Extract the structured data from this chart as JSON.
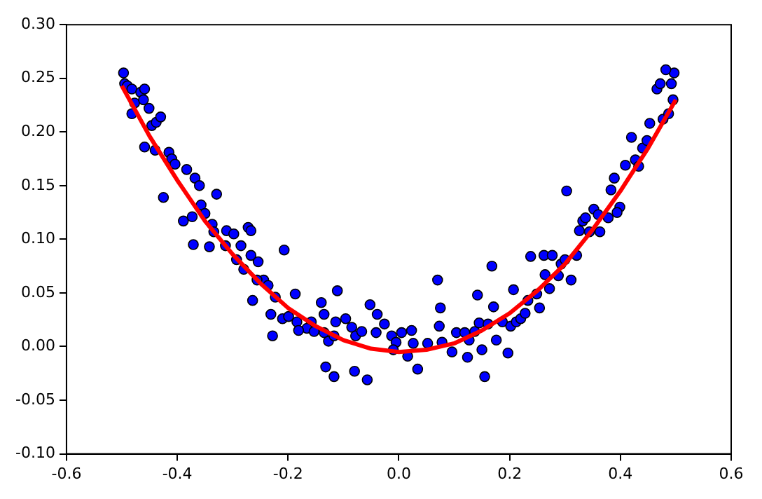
{
  "chart_data": {
    "type": "scatter",
    "xlim": [
      -0.6,
      0.6
    ],
    "ylim": [
      -0.1,
      0.3
    ],
    "xticks": [
      {
        "value": -0.6,
        "label": "-0.6"
      },
      {
        "value": -0.4,
        "label": "-0.4"
      },
      {
        "value": -0.2,
        "label": "-0.2"
      },
      {
        "value": 0,
        "label": "0.0"
      },
      {
        "value": 0.2,
        "label": "0.2"
      },
      {
        "value": 0.4,
        "label": "0.4"
      },
      {
        "value": 0.6,
        "label": "0.6"
      }
    ],
    "yticks": [
      {
        "value": -0.1,
        "label": "-0.10"
      },
      {
        "value": -0.05,
        "label": "-0.05"
      },
      {
        "value": 0,
        "label": "0.00"
      },
      {
        "value": 0.05,
        "label": "0.05"
      },
      {
        "value": 0.1,
        "label": "0.10"
      },
      {
        "value": 0.15,
        "label": "0.15"
      },
      {
        "value": 0.2,
        "label": "0.20"
      },
      {
        "value": 0.25,
        "label": "0.25"
      },
      {
        "value": 0.3,
        "label": "0.30"
      }
    ],
    "grid": false,
    "legend": false,
    "series": [
      {
        "marker": "circle",
        "color": "#0000ff",
        "x": [
          -0.497,
          -0.495,
          -0.49,
          -0.482,
          -0.466,
          -0.459,
          -0.477,
          -0.461,
          -0.482,
          -0.451,
          -0.446,
          -0.438,
          -0.43,
          -0.459,
          -0.44,
          -0.415,
          -0.41,
          -0.404,
          -0.383,
          -0.425,
          -0.368,
          -0.36,
          -0.329,
          -0.357,
          -0.389,
          -0.373,
          -0.35,
          -0.337,
          -0.342,
          -0.334,
          -0.371,
          -0.313,
          -0.311,
          -0.298,
          -0.272,
          -0.267,
          -0.285,
          -0.293,
          -0.267,
          -0.28,
          -0.254,
          -0.244,
          -0.256,
          -0.207,
          -0.236,
          -0.264,
          -0.223,
          -0.231,
          -0.187,
          -0.228,
          -0.21,
          -0.184,
          -0.199,
          -0.158,
          -0.166,
          -0.181,
          -0.153,
          -0.14,
          -0.135,
          -0.114,
          -0.111,
          -0.135,
          -0.127,
          -0.096,
          -0.085,
          -0.078,
          -0.117,
          -0.132,
          -0.117,
          -0.08,
          -0.057,
          -0.052,
          -0.039,
          -0.026,
          -0.013,
          -0.041,
          -0.067,
          -0.005,
          0.005,
          0.023,
          0.026,
          -0.01,
          0.016,
          0.034,
          0.052,
          0.073,
          0.07,
          0.075,
          0.078,
          0.096,
          0.104,
          0.119,
          0.127,
          0.124,
          0.137,
          0.145,
          0.142,
          0.15,
          0.161,
          0.171,
          0.155,
          0.176,
          0.187,
          0.168,
          0.202,
          0.197,
          0.207,
          0.212,
          0.22,
          0.228,
          0.233,
          0.238,
          0.249,
          0.254,
          0.262,
          0.264,
          0.272,
          0.277,
          0.288,
          0.293,
          0.3,
          0.311,
          0.303,
          0.321,
          0.326,
          0.332,
          0.337,
          0.352,
          0.344,
          0.363,
          0.36,
          0.378,
          0.383,
          0.389,
          0.399,
          0.394,
          0.409,
          0.42,
          0.427,
          0.433,
          0.44,
          0.448,
          0.453,
          0.466,
          0.472,
          0.477,
          0.487,
          0.492,
          0.497,
          0.482,
          0.495
        ],
        "values": [
          0.255,
          0.245,
          0.243,
          0.24,
          0.237,
          0.24,
          0.227,
          0.23,
          0.217,
          0.222,
          0.206,
          0.209,
          0.214,
          0.186,
          0.183,
          0.181,
          0.175,
          0.17,
          0.165,
          0.139,
          0.157,
          0.15,
          0.142,
          0.132,
          0.117,
          0.121,
          0.124,
          0.114,
          0.093,
          0.107,
          0.095,
          0.094,
          0.108,
          0.105,
          0.111,
          0.108,
          0.094,
          0.081,
          0.085,
          0.072,
          0.079,
          0.062,
          0.062,
          0.09,
          0.057,
          0.043,
          0.046,
          0.03,
          0.049,
          0.01,
          0.026,
          0.023,
          0.028,
          0.023,
          0.017,
          0.015,
          0.014,
          0.041,
          0.03,
          0.023,
          0.052,
          0.013,
          0.005,
          0.026,
          0.018,
          0.01,
          0.01,
          -0.019,
          -0.028,
          -0.023,
          -0.031,
          0.039,
          0.03,
          0.021,
          0.01,
          0.013,
          0.014,
          0.004,
          0.013,
          0.015,
          0.003,
          -0.003,
          -0.009,
          -0.021,
          0.003,
          0.019,
          0.062,
          0.036,
          0.004,
          -0.005,
          0.013,
          0.013,
          0.006,
          -0.01,
          0.014,
          0.022,
          0.048,
          -0.003,
          0.021,
          0.037,
          -0.028,
          0.006,
          0.023,
          0.075,
          0.019,
          -0.006,
          0.053,
          0.023,
          0.026,
          0.031,
          0.043,
          0.084,
          0.049,
          0.036,
          0.085,
          0.067,
          0.054,
          0.085,
          0.066,
          0.077,
          0.081,
          0.062,
          0.145,
          0.085,
          0.108,
          0.117,
          0.12,
          0.128,
          0.107,
          0.107,
          0.123,
          0.12,
          0.146,
          0.157,
          0.13,
          0.125,
          0.169,
          0.195,
          0.174,
          0.168,
          0.185,
          0.192,
          0.208,
          0.24,
          0.245,
          0.212,
          0.217,
          0.245,
          0.255,
          0.258,
          0.23
        ]
      },
      {
        "type": "line",
        "marker": "none",
        "line_style": "solid",
        "color": "#ff0000",
        "x": [
          -0.5,
          -0.45,
          -0.4,
          -0.35,
          -0.3,
          -0.25,
          -0.2,
          -0.15,
          -0.1,
          -0.05,
          0,
          0.05,
          0.1,
          0.15,
          0.2,
          0.25,
          0.3,
          0.35,
          0.4,
          0.45,
          0.5
        ],
        "values": [
          0.243,
          0.196,
          0.155,
          0.117,
          0.086,
          0.059,
          0.036,
          0.019,
          0.006,
          -0.002,
          -0.005,
          -0.003,
          0.003,
          0.015,
          0.031,
          0.052,
          0.077,
          0.109,
          0.145,
          0.185,
          0.23
        ]
      }
    ]
  }
}
